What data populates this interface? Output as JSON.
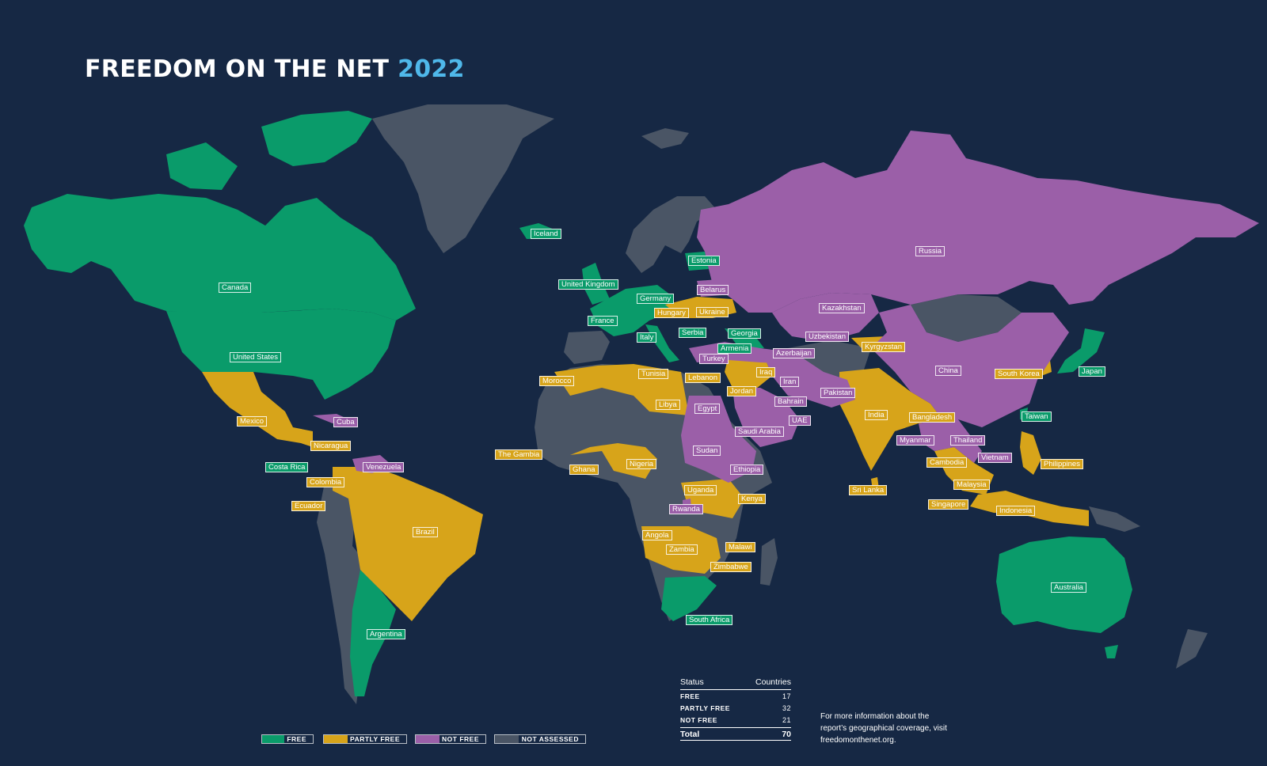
{
  "title": {
    "text": "FREEDOM ON THE NET",
    "year": "2022"
  },
  "colors": {
    "background": "#162844",
    "free": "#0a9b6a",
    "partly_free": "#d7a41a",
    "not_free": "#9b5fa8",
    "not_assessed": "#4a5565",
    "accent": "#4fb8ea"
  },
  "countries": [
    {
      "name": "Iceland",
      "status": "free"
    },
    {
      "name": "Canada",
      "status": "free"
    },
    {
      "name": "United States",
      "status": "free"
    },
    {
      "name": "Estonia",
      "status": "free"
    },
    {
      "name": "United Kingdom",
      "status": "free"
    },
    {
      "name": "Germany",
      "status": "free"
    },
    {
      "name": "France",
      "status": "free"
    },
    {
      "name": "Italy",
      "status": "free"
    },
    {
      "name": "Serbia",
      "status": "free"
    },
    {
      "name": "Georgia",
      "status": "free"
    },
    {
      "name": "Armenia",
      "status": "free"
    },
    {
      "name": "Costa Rica",
      "status": "free"
    },
    {
      "name": "Argentina",
      "status": "free"
    },
    {
      "name": "South Africa",
      "status": "free"
    },
    {
      "name": "Japan",
      "status": "free"
    },
    {
      "name": "Taiwan",
      "status": "free"
    },
    {
      "name": "Australia",
      "status": "free"
    },
    {
      "name": "Hungary",
      "status": "partly"
    },
    {
      "name": "Ukraine",
      "status": "partly"
    },
    {
      "name": "Mexico",
      "status": "partly"
    },
    {
      "name": "Nicaragua",
      "status": "partly"
    },
    {
      "name": "Colombia",
      "status": "partly"
    },
    {
      "name": "Ecuador",
      "status": "partly"
    },
    {
      "name": "Brazil",
      "status": "partly"
    },
    {
      "name": "Morocco",
      "status": "partly"
    },
    {
      "name": "Tunisia",
      "status": "partly"
    },
    {
      "name": "Libya",
      "status": "partly"
    },
    {
      "name": "Lebanon",
      "status": "partly"
    },
    {
      "name": "Iraq",
      "status": "partly"
    },
    {
      "name": "Jordan",
      "status": "partly"
    },
    {
      "name": "The Gambia",
      "status": "partly"
    },
    {
      "name": "Ghana",
      "status": "partly"
    },
    {
      "name": "Nigeria",
      "status": "partly"
    },
    {
      "name": "Uganda",
      "status": "partly"
    },
    {
      "name": "Kenya",
      "status": "partly"
    },
    {
      "name": "Angola",
      "status": "partly"
    },
    {
      "name": "Zambia",
      "status": "partly"
    },
    {
      "name": "Malawi",
      "status": "partly"
    },
    {
      "name": "Zimbabwe",
      "status": "partly"
    },
    {
      "name": "Kyrgyzstan",
      "status": "partly"
    },
    {
      "name": "India",
      "status": "partly"
    },
    {
      "name": "Bangladesh",
      "status": "partly"
    },
    {
      "name": "Sri Lanka",
      "status": "partly"
    },
    {
      "name": "South Korea",
      "status": "partly"
    },
    {
      "name": "Cambodia",
      "status": "partly"
    },
    {
      "name": "Malaysia",
      "status": "partly"
    },
    {
      "name": "Singapore",
      "status": "partly"
    },
    {
      "name": "Indonesia",
      "status": "partly"
    },
    {
      "name": "Philippines",
      "status": "partly"
    },
    {
      "name": "Russia",
      "status": "notfree"
    },
    {
      "name": "Belarus",
      "status": "notfree"
    },
    {
      "name": "Kazakhstan",
      "status": "notfree"
    },
    {
      "name": "Uzbekistan",
      "status": "notfree"
    },
    {
      "name": "Azerbaijan",
      "status": "notfree"
    },
    {
      "name": "Turkey",
      "status": "notfree"
    },
    {
      "name": "Iran",
      "status": "notfree"
    },
    {
      "name": "Bahrain",
      "status": "notfree"
    },
    {
      "name": "UAE",
      "status": "notfree"
    },
    {
      "name": "Saudi Arabia",
      "status": "notfree"
    },
    {
      "name": "Egypt",
      "status": "notfree"
    },
    {
      "name": "Sudan",
      "status": "notfree"
    },
    {
      "name": "Ethiopia",
      "status": "notfree"
    },
    {
      "name": "Rwanda",
      "status": "notfree"
    },
    {
      "name": "Pakistan",
      "status": "notfree"
    },
    {
      "name": "China",
      "status": "notfree"
    },
    {
      "name": "Myanmar",
      "status": "notfree"
    },
    {
      "name": "Thailand",
      "status": "notfree"
    },
    {
      "name": "Vietnam",
      "status": "notfree"
    },
    {
      "name": "Cuba",
      "status": "notfree"
    },
    {
      "name": "Venezuela",
      "status": "notfree"
    }
  ],
  "stats": {
    "status_header": "Status",
    "countries_header": "Countries",
    "rows": [
      {
        "label": "FREE",
        "value": "17"
      },
      {
        "label": "PARTLY FREE",
        "value": "32"
      },
      {
        "label": "NOT FREE",
        "value": "21"
      }
    ],
    "total_label": "Total",
    "total_value": "70"
  },
  "note": "For more information about the report’s geographical coverage, visit freedomonthenet.org.",
  "legend": [
    {
      "label": "FREE",
      "color": "#0a9b6a"
    },
    {
      "label": "PARTLY FREE",
      "color": "#d7a41a"
    },
    {
      "label": "NOT FREE",
      "color": "#9b5fa8"
    },
    {
      "label": "NOT ASSESSED",
      "color": "#4a5565"
    }
  ]
}
